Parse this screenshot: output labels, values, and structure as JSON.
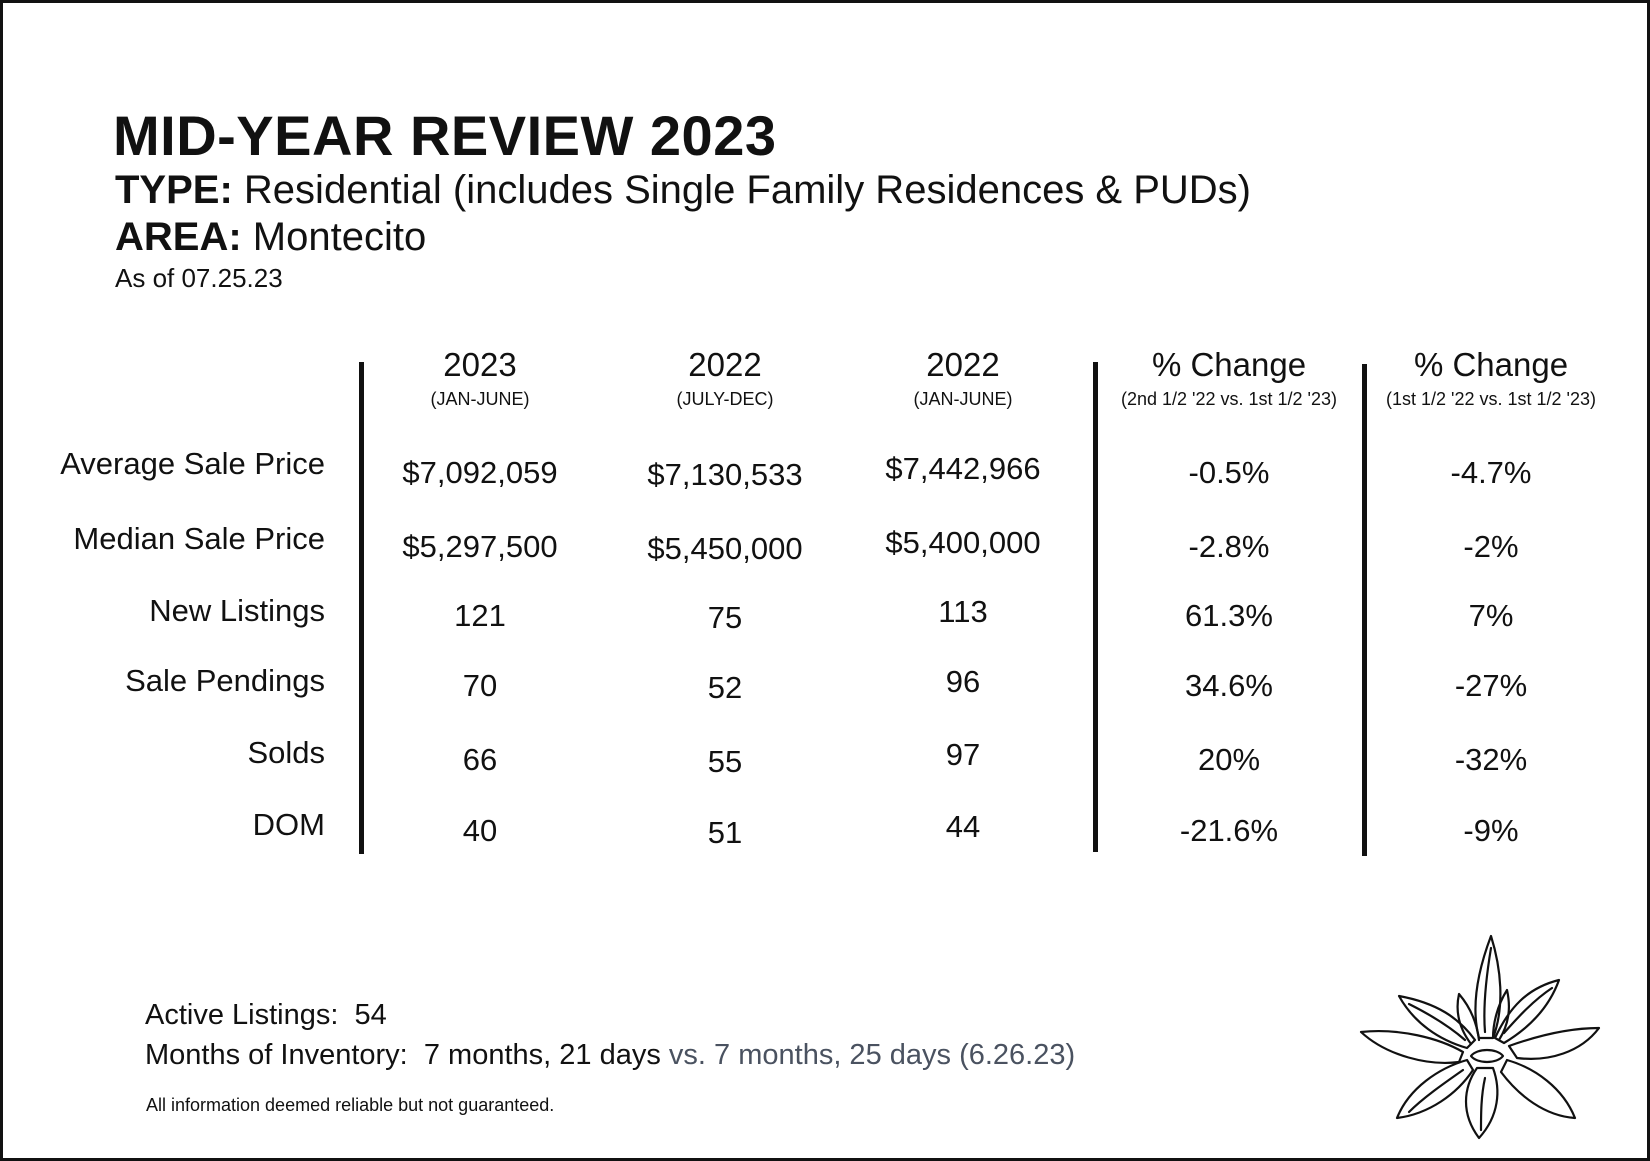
{
  "header": {
    "title": "MID-YEAR REVIEW 2023",
    "type_label": "TYPE:",
    "type_value": "Residential (includes Single Family Residences & PUDs)",
    "area_label": "AREA:",
    "area_value": "Montecito",
    "as_of": "As of 07.25.23"
  },
  "table": {
    "columns": [
      {
        "year": "2023",
        "sub": "(JAN-JUNE)"
      },
      {
        "year": "2022",
        "sub": "(JULY-DEC)"
      },
      {
        "year": "2022",
        "sub": "(JAN-JUNE)"
      },
      {
        "year": "% Change",
        "sub": "(2nd 1/2 '22 vs. 1st 1/2 '23)"
      },
      {
        "year": "% Change",
        "sub": "(1st 1/2 '22 vs. 1st 1/2 '23)"
      }
    ],
    "rows": [
      {
        "label": "Average Sale Price",
        "values": [
          "$7,092,059",
          "$7,130,533",
          "$7,442,966",
          "-0.5%",
          "-4.7%"
        ]
      },
      {
        "label": "Median Sale Price",
        "values": [
          "$5,297,500",
          "$5,450,000",
          "$5,400,000",
          "-2.8%",
          "-2%"
        ]
      },
      {
        "label": "New Listings",
        "values": [
          "121",
          "75",
          "113",
          "61.3%",
          "7%"
        ]
      },
      {
        "label": "Sale Pendings",
        "values": [
          "70",
          "52",
          "96",
          "34.6%",
          "-27%"
        ]
      },
      {
        "label": "Solds",
        "values": [
          "66",
          "55",
          "97",
          "20%",
          "-32%"
        ]
      },
      {
        "label": "DOM",
        "values": [
          "40",
          "51",
          "44",
          "-21.6%",
          "-9%"
        ]
      }
    ]
  },
  "footer": {
    "active_label": "Active Listings:",
    "active_value": "54",
    "moi_label": "Months of Inventory:",
    "moi_value": "7 months, 21 days",
    "moi_compare": "vs. 7 months, 25 days (6.26.23)",
    "disclaimer": "All information deemed reliable but not guaranteed."
  },
  "icons": {
    "decoration": "magnolia-flower-icon"
  },
  "colors": {
    "text": "#111111",
    "muted_text": "#4a5260",
    "border": "#111111"
  }
}
